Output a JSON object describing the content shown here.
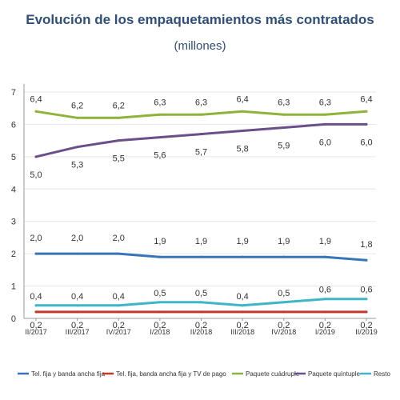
{
  "chart_data": {
    "type": "line",
    "title": "Evolución de los empaquetamientos más contratados",
    "subtitle": "(millones)",
    "categories": [
      "II/2017",
      "III/2017",
      "IV/2017",
      "I/2018",
      "II/2018",
      "III/2018",
      "IV/2018",
      "I/2019",
      "II/2019"
    ],
    "ylim": [
      0,
      7
    ],
    "yticks": [
      0,
      1,
      2,
      3,
      4,
      5,
      6,
      7
    ],
    "grid": true,
    "legend_position": "bottom",
    "series": [
      {
        "name": "Tel. fija y banda ancha fija",
        "color": "#3a74b8",
        "values": [
          2.0,
          2.0,
          2.0,
          1.9,
          1.9,
          1.9,
          1.9,
          1.9,
          1.8
        ],
        "labels": [
          "2,0",
          "2,0",
          "2,0",
          "1,9",
          "1,9",
          "1,9",
          "1,9",
          "1,9",
          "1,8"
        ]
      },
      {
        "name": "Tel. fija, banda ancha fija y TV de pago",
        "color": "#c0392b",
        "values": [
          0.2,
          0.2,
          0.2,
          0.2,
          0.2,
          0.2,
          0.2,
          0.2,
          0.2
        ],
        "labels": [
          "0,2",
          "0,2",
          "0,2",
          "0,2",
          "0,2",
          "0,2",
          "0,2",
          "0,2",
          "0,2"
        ]
      },
      {
        "name": "Paquete cuádruple",
        "color": "#8db33a",
        "values": [
          6.4,
          6.2,
          6.2,
          6.3,
          6.3,
          6.4,
          6.3,
          6.3,
          6.4
        ],
        "labels": [
          "6,4",
          "6,2",
          "6,2",
          "6,3",
          "6,3",
          "6,4",
          "6,3",
          "6,3",
          "6,4"
        ]
      },
      {
        "name": "Paquete quíntuple",
        "color": "#6a4f8a",
        "values": [
          5.0,
          5.3,
          5.5,
          5.6,
          5.7,
          5.8,
          5.9,
          6.0,
          6.0
        ],
        "labels": [
          "5,0",
          "5,3",
          "5,5",
          "5,6",
          "5,7",
          "5,8",
          "5,9",
          "6,0",
          "6,0"
        ]
      },
      {
        "name": "Resto",
        "color": "#3fb5c8",
        "values": [
          0.4,
          0.4,
          0.4,
          0.5,
          0.5,
          0.4,
          0.5,
          0.6,
          0.6
        ],
        "labels": [
          "0,4",
          "0,4",
          "0,4",
          "0,5",
          "0,5",
          "0,4",
          "0,5",
          "0,6",
          "0,6"
        ]
      }
    ]
  }
}
